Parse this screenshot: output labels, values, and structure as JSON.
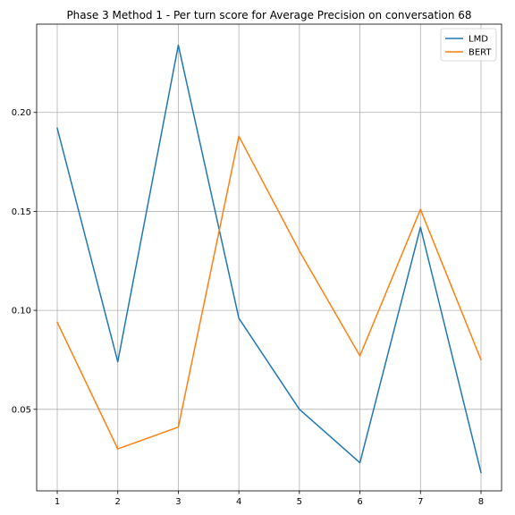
{
  "chart_data": {
    "type": "line",
    "title": "Phase 3 Method 1 - Per turn score for Average Precision on conversation 68",
    "xlabel": "",
    "ylabel": "",
    "x": [
      1,
      2,
      3,
      4,
      5,
      6,
      7,
      8
    ],
    "xticks": [
      "1",
      "2",
      "3",
      "4",
      "5",
      "6",
      "7",
      "8"
    ],
    "xlim": [
      0.66,
      8.34
    ],
    "ylim": [
      0.0088,
      0.2446
    ],
    "yticks": [
      0.05,
      0.1,
      0.15,
      0.2
    ],
    "ytick_labels": [
      "0.05",
      "0.10",
      "0.15",
      "0.20"
    ],
    "grid": true,
    "legend_position": "upper right",
    "series": [
      {
        "name": "LMD",
        "color": "#1f77b4",
        "values": [
          0.192,
          0.074,
          0.234,
          0.096,
          0.05,
          0.023,
          0.142,
          0.018
        ]
      },
      {
        "name": "BERT",
        "color": "#ff7f0e",
        "values": [
          0.094,
          0.03,
          0.041,
          0.188,
          0.13,
          0.077,
          0.151,
          0.075
        ]
      }
    ]
  }
}
